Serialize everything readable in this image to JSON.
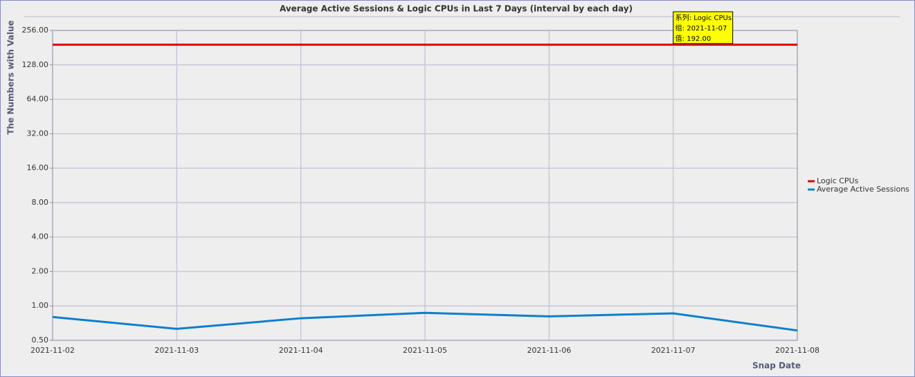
{
  "chart_data": {
    "type": "line",
    "title": "Average Active Sessions & Logic CPUs in Last 7 Days (interval by each day)",
    "x_label": "Snap Date",
    "y_label": "The Numbers with Value",
    "categories": [
      "2021-11-02",
      "2021-11-03",
      "2021-11-04",
      "2021-11-05",
      "2021-11-06",
      "2021-11-07",
      "2021-11-08"
    ],
    "series": [
      {
        "name": "Logic CPUs",
        "color": "#e00000",
        "values": [
          192,
          192,
          192,
          192,
          192,
          192,
          192
        ]
      },
      {
        "name": "Average Active Sessions",
        "color": "#0a7fd0",
        "values": [
          0.8,
          0.63,
          0.78,
          0.87,
          0.81,
          0.86,
          0.61
        ]
      }
    ],
    "log_scale": true,
    "log_base": 2,
    "ylim": [
      0.5,
      256
    ],
    "yticks": [
      {
        "value": 0.5,
        "label": "0.50"
      },
      {
        "value": 1,
        "label": "1.00"
      },
      {
        "value": 2,
        "label": "2.00"
      },
      {
        "value": 4,
        "label": "4.00"
      },
      {
        "value": 8,
        "label": "8.00"
      },
      {
        "value": 16,
        "label": "16.00"
      },
      {
        "value": 32,
        "label": "32.00"
      },
      {
        "value": 64,
        "label": "64.00"
      },
      {
        "value": 128,
        "label": "128.00"
      },
      {
        "value": 256,
        "label": "256.00"
      }
    ],
    "grid": true,
    "legend": "right",
    "tooltip": {
      "series": 0,
      "index": 5,
      "lines": [
        "系列: Logic CPUs",
        "组: 2021-11-07",
        "值: 192.00"
      ]
    }
  }
}
